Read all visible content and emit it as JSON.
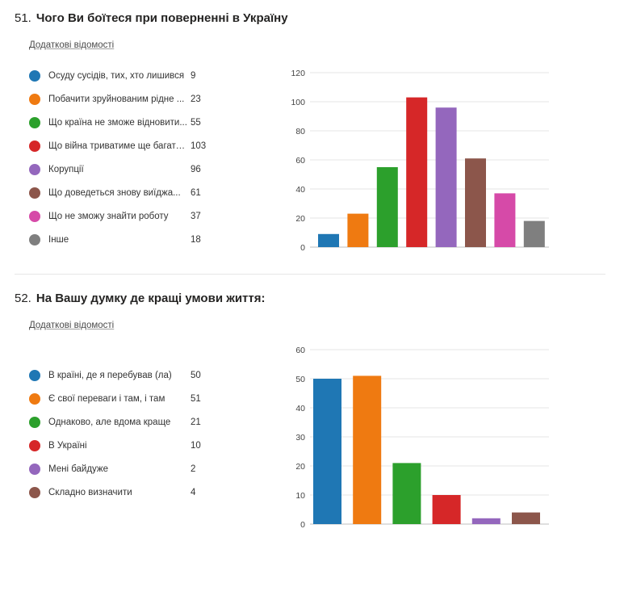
{
  "questions": [
    {
      "number": "51.",
      "title": "Чого Ви боїтеся при поверненні в Україну",
      "more_link": "Додаткові відомості",
      "legend": [
        {
          "label": "Осуду сусідів, тих, хто лишився",
          "count": "9"
        },
        {
          "label": "Побачити зруйнованим рідне ...",
          "count": "23"
        },
        {
          "label": "Що країна не зможе відновити...",
          "count": "55"
        },
        {
          "label": "Що війна триватиме ще багато...",
          "count": "103"
        },
        {
          "label": "Корупції",
          "count": "96"
        },
        {
          "label": "Що доведеться знову виїджа...",
          "count": "61"
        },
        {
          "label": "Що не зможу знайти роботу",
          "count": "37"
        },
        {
          "label": "Інше",
          "count": "18"
        }
      ]
    },
    {
      "number": "52.",
      "title": "На Вашу думку де кращі умови життя:",
      "more_link": "Додаткові відомості",
      "legend": [
        {
          "label": "В країні, де я перебував (ла)",
          "count": "50"
        },
        {
          "label": "Є свої переваги і там, і там",
          "count": "51"
        },
        {
          "label": "Однаково, але вдома краще",
          "count": "21"
        },
        {
          "label": "В Україні",
          "count": "10"
        },
        {
          "label": "Мені байдуже",
          "count": "2"
        },
        {
          "label": "Складно визначити",
          "count": "4"
        }
      ]
    }
  ],
  "chart_data": [
    {
      "type": "bar",
      "categories": [
        "Осуду сусідів, тих, хто лишився",
        "Побачити зруйнованим рідне ...",
        "Що країна не зможе відновити...",
        "Що війна триватиме ще багато...",
        "Корупції",
        "Що доведеться знову виїджа...",
        "Що не зможу знайти роботу",
        "Інше"
      ],
      "values": [
        9,
        23,
        55,
        103,
        96,
        61,
        37,
        18
      ],
      "colors": [
        "#1f77b4",
        "#ef7a11",
        "#2ca02c",
        "#d62728",
        "#9467bd",
        "#8c564b",
        "#d64aa8",
        "#7f7f7f"
      ],
      "ylim": [
        0,
        120
      ],
      "yticks": [
        0,
        20,
        40,
        60,
        80,
        100,
        120
      ],
      "grid": true,
      "legend": "left"
    },
    {
      "type": "bar",
      "categories": [
        "В країні, де я перебував (ла)",
        "Є свої переваги і там, і там",
        "Однаково, але вдома краще",
        "В Україні",
        "Мені байдуже",
        "Складно визначити"
      ],
      "values": [
        50,
        51,
        21,
        10,
        2,
        4
      ],
      "colors": [
        "#1f77b4",
        "#ef7a11",
        "#2ca02c",
        "#d62728",
        "#9467bd",
        "#8c564b"
      ],
      "ylim": [
        0,
        60
      ],
      "yticks": [
        0,
        10,
        20,
        30,
        40,
        50,
        60
      ],
      "grid": true,
      "legend": "left"
    }
  ]
}
